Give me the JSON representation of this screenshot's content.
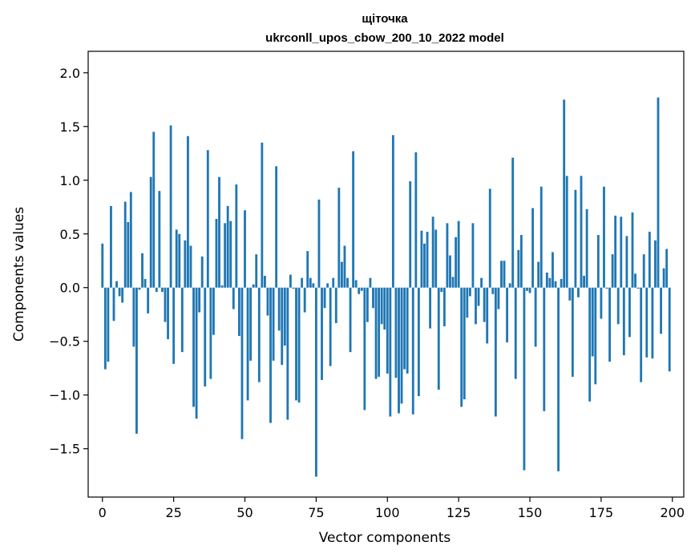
{
  "chart_data": {
    "type": "bar",
    "title": "щіточка",
    "subtitle": "ukrconll_upos_cbow_200_10_2022 model",
    "xlabel": "Vector components",
    "ylabel": "Components values",
    "xlim": [
      -5,
      204
    ],
    "ylim": [
      -1.95,
      2.2
    ],
    "x_ticks": [
      0,
      25,
      50,
      75,
      100,
      125,
      150,
      175,
      200
    ],
    "x_tick_labels": [
      "0",
      "25",
      "50",
      "75",
      "100",
      "125",
      "150",
      "175",
      "200"
    ],
    "y_ticks": [
      -1.5,
      -1.0,
      -0.5,
      0.0,
      0.5,
      1.0,
      1.5,
      2.0
    ],
    "y_tick_labels": [
      "−1.5",
      "−1.0",
      "−0.5",
      "0.0",
      "0.5",
      "1.0",
      "1.5",
      "2.0"
    ],
    "bar_color": "#1f77b4",
    "grid": false,
    "x": [
      0,
      1,
      2,
      3,
      4,
      5,
      6,
      7,
      8,
      9,
      10,
      11,
      12,
      13,
      14,
      15,
      16,
      17,
      18,
      19,
      20,
      21,
      22,
      23,
      24,
      25,
      26,
      27,
      28,
      29,
      30,
      31,
      32,
      33,
      34,
      35,
      36,
      37,
      38,
      39,
      40,
      41,
      42,
      43,
      44,
      45,
      46,
      47,
      48,
      49,
      50,
      51,
      52,
      53,
      54,
      55,
      56,
      57,
      58,
      59,
      60,
      61,
      62,
      63,
      64,
      65,
      66,
      67,
      68,
      69,
      70,
      71,
      72,
      73,
      74,
      75,
      76,
      77,
      78,
      79,
      80,
      81,
      82,
      83,
      84,
      85,
      86,
      87,
      88,
      89,
      90,
      91,
      92,
      93,
      94,
      95,
      96,
      97,
      98,
      99,
      100,
      101,
      102,
      103,
      104,
      105,
      106,
      107,
      108,
      109,
      110,
      111,
      112,
      113,
      114,
      115,
      116,
      117,
      118,
      119,
      120,
      121,
      122,
      123,
      124,
      125,
      126,
      127,
      128,
      129,
      130,
      131,
      132,
      133,
      134,
      135,
      136,
      137,
      138,
      139,
      140,
      141,
      142,
      143,
      144,
      145,
      146,
      147,
      148,
      149,
      150,
      151,
      152,
      153,
      154,
      155,
      156,
      157,
      158,
      159,
      160,
      161,
      162,
      163,
      164,
      165,
      166,
      167,
      168,
      169,
      170,
      171,
      172,
      173,
      174,
      175,
      176,
      177,
      178,
      179,
      180,
      181,
      182,
      183,
      184,
      185,
      186,
      187,
      188,
      189,
      190,
      191,
      192,
      193,
      194,
      195,
      196,
      197,
      198,
      199
    ],
    "values": [
      0.41,
      -0.76,
      -0.69,
      0.76,
      -0.31,
      0.06,
      -0.08,
      -0.14,
      0.8,
      0.61,
      0.89,
      -0.55,
      -1.36,
      -0.02,
      0.32,
      0.08,
      -0.24,
      1.03,
      1.45,
      -0.04,
      0.9,
      -0.04,
      -0.32,
      -0.48,
      1.51,
      -0.71,
      0.54,
      0.5,
      -0.6,
      0.44,
      1.41,
      0.39,
      -1.11,
      -1.22,
      -0.23,
      0.29,
      -0.92,
      1.28,
      -0.85,
      -0.44,
      0.64,
      1.03,
      0.02,
      0.6,
      0.76,
      0.62,
      -0.2,
      0.96,
      -0.45,
      -1.41,
      0.72,
      -1.05,
      -0.68,
      0.03,
      0.31,
      -0.88,
      1.35,
      0.11,
      -0.26,
      -1.26,
      -0.68,
      1.13,
      -0.4,
      -0.72,
      -0.54,
      -1.23,
      0.12,
      -0.01,
      -1.05,
      -1.07,
      0.09,
      -0.23,
      0.34,
      0.09,
      0.04,
      -1.76,
      0.82,
      -0.86,
      -0.19,
      0.04,
      -0.73,
      0.09,
      -0.33,
      0.93,
      0.24,
      0.39,
      0.09,
      -0.6,
      1.27,
      0.07,
      -0.06,
      -0.03,
      -1.14,
      -0.32,
      0.09,
      -0.19,
      -0.85,
      -0.83,
      -0.34,
      -0.39,
      -0.8,
      -1.2,
      1.42,
      -0.84,
      -1.17,
      -1.08,
      -0.76,
      -0.8,
      0.99,
      -1.18,
      1.26,
      -1.01,
      0.53,
      0.41,
      0.52,
      -0.38,
      0.66,
      0.54,
      -0.95,
      -0.04,
      -0.36,
      0.6,
      0.3,
      0.1,
      0.47,
      0.62,
      -1.11,
      -1.04,
      -0.28,
      -0.08,
      0.6,
      -0.34,
      -0.17,
      0.09,
      -0.32,
      -0.52,
      0.92,
      -0.06,
      -1.2,
      -0.2,
      0.25,
      0.25,
      -0.51,
      0.04,
      1.21,
      -0.85,
      0.35,
      0.49,
      -1.7,
      -0.03,
      -0.05,
      0.74,
      -0.55,
      0.24,
      0.94,
      -1.15,
      0.14,
      0.09,
      0.33,
      0.06,
      -1.71,
      0.08,
      1.75,
      1.04,
      -0.12,
      -0.83,
      0.91,
      -0.09,
      1.04,
      0.11,
      0.73,
      -1.06,
      -0.64,
      -0.9,
      0.49,
      -0.29,
      0.94,
      -0.01,
      -0.69,
      0.31,
      0.67,
      -0.34,
      0.66,
      -0.63,
      0.48,
      -0.46,
      0.7,
      0.13,
      -0.01,
      -0.88,
      0.31,
      -0.65,
      0.52,
      -0.66,
      0.44,
      1.77,
      -0.43,
      0.18,
      0.36,
      -0.78
    ]
  }
}
